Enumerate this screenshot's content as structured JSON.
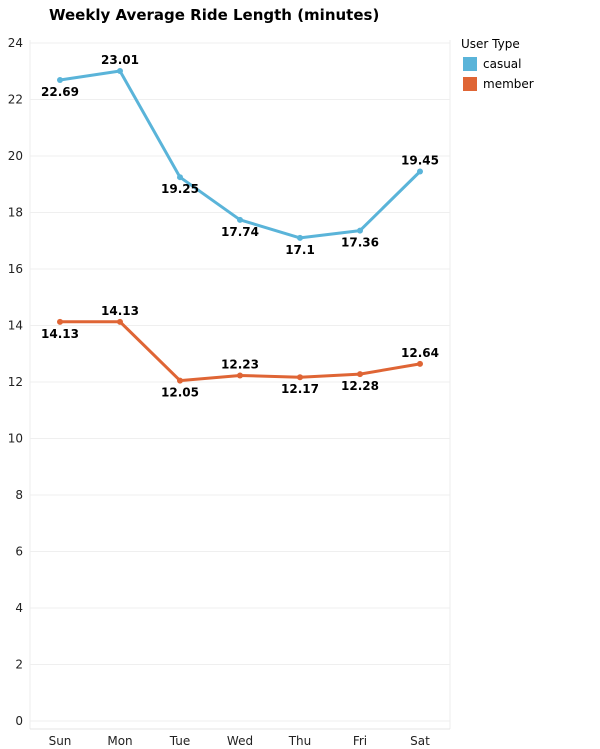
{
  "chart_data": {
    "type": "line",
    "title": "Weekly Average Ride Length (minutes)",
    "xlabel": "",
    "ylabel": "",
    "categories": [
      "Sun",
      "Mon",
      "Tue",
      "Wed",
      "Thu",
      "Fri",
      "Sat"
    ],
    "ylim": [
      0,
      24
    ],
    "y_ticks": [
      0,
      2,
      4,
      6,
      8,
      10,
      12,
      14,
      16,
      18,
      20,
      22,
      24
    ],
    "grid": true,
    "legend": {
      "title": "User Type",
      "placement": "top-right"
    },
    "series": [
      {
        "name": "casual",
        "color": "#5ab4d9",
        "values": [
          22.69,
          23.01,
          19.25,
          17.74,
          17.1,
          17.36,
          19.45
        ],
        "labels": [
          "22.69",
          "23.01",
          "19.25",
          "17.74",
          "17.1",
          "17.36",
          "19.45"
        ],
        "label_side": [
          "below",
          "above",
          "below",
          "below",
          "below",
          "below",
          "above"
        ]
      },
      {
        "name": "member",
        "color": "#df6535",
        "values": [
          14.13,
          14.13,
          12.05,
          12.23,
          12.17,
          12.28,
          12.64
        ],
        "labels": [
          "14.13",
          "14.13",
          "12.05",
          "12.23",
          "12.17",
          "12.28",
          "12.64"
        ],
        "label_side": [
          "below",
          "above",
          "below",
          "above",
          "below",
          "below",
          "above"
        ]
      }
    ]
  }
}
